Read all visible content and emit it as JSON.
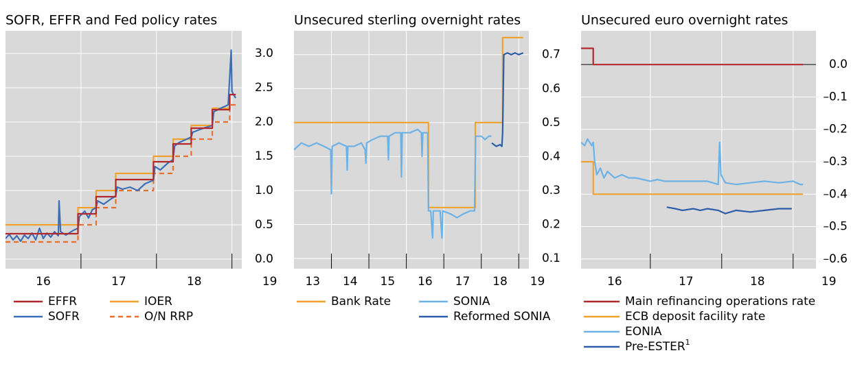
{
  "chart_data": [
    {
      "type": "line",
      "title": "SOFR, EFFR and Fed policy rates",
      "xlim": [
        2016.0,
        2019.13
      ],
      "xticks": [
        {
          "value": 2016.5,
          "label": "16"
        },
        {
          "value": 2017.5,
          "label": "17"
        },
        {
          "value": 2018.5,
          "label": "18"
        },
        {
          "value": 2019.5,
          "label": "19"
        }
      ],
      "xgrid": [
        2017,
        2018,
        2019
      ],
      "ylim": [
        -0.14,
        3.33
      ],
      "yticks": [
        {
          "value": 0,
          "label": "0.0"
        },
        0.5,
        {
          "value": 1,
          "label": "1.0"
        },
        1.5,
        {
          "value": 2,
          "label": "2.0"
        },
        2.5,
        {
          "value": 3,
          "label": "3.0"
        }
      ],
      "grid": true,
      "series": [
        {
          "name": "IOER",
          "color": "#f0a22e",
          "x": [
            2016.0,
            2016.96,
            2016.96,
            2017.2,
            2017.2,
            2017.46,
            2017.46,
            2017.96,
            2017.96,
            2018.22,
            2018.22,
            2018.46,
            2018.46,
            2018.74,
            2018.74,
            2018.97,
            2018.97,
            2019.05
          ],
          "values": [
            0.5,
            0.5,
            0.75,
            0.75,
            1.0,
            1.0,
            1.25,
            1.25,
            1.5,
            1.5,
            1.75,
            1.75,
            1.95,
            1.95,
            2.2,
            2.2,
            2.4,
            2.4
          ]
        },
        {
          "name": "O/N RRP",
          "color": "#e8702a",
          "dash": true,
          "x": [
            2016.0,
            2016.96,
            2016.96,
            2017.2,
            2017.2,
            2017.46,
            2017.46,
            2017.96,
            2017.96,
            2018.22,
            2018.22,
            2018.46,
            2018.46,
            2018.74,
            2018.74,
            2018.97,
            2018.97,
            2019.05
          ],
          "values": [
            0.25,
            0.25,
            0.5,
            0.5,
            0.75,
            0.75,
            1.0,
            1.0,
            1.25,
            1.25,
            1.5,
            1.5,
            1.75,
            1.75,
            2.0,
            2.0,
            2.25,
            2.25
          ]
        },
        {
          "name": "SOFR",
          "color": "#3a6fb7",
          "x": [
            2016.0,
            2016.05,
            2016.1,
            2016.15,
            2016.2,
            2016.25,
            2016.3,
            2016.35,
            2016.4,
            2016.45,
            2016.5,
            2016.55,
            2016.6,
            2016.65,
            2016.7,
            2016.71,
            2016.73,
            2016.8,
            2016.9,
            2016.96,
            2016.98,
            2017.05,
            2017.1,
            2017.15,
            2017.2,
            2017.22,
            2017.3,
            2017.4,
            2017.46,
            2017.48,
            2017.55,
            2017.65,
            2017.75,
            2017.85,
            2017.96,
            2017.98,
            2018.05,
            2018.15,
            2018.22,
            2018.24,
            2018.3,
            2018.4,
            2018.46,
            2018.48,
            2018.55,
            2018.65,
            2018.74,
            2018.76,
            2018.85,
            2018.95,
            2018.99,
            2019.0,
            2019.02,
            2019.05
          ],
          "values": [
            0.3,
            0.36,
            0.28,
            0.34,
            0.26,
            0.35,
            0.3,
            0.38,
            0.28,
            0.45,
            0.3,
            0.38,
            0.32,
            0.4,
            0.34,
            0.85,
            0.4,
            0.35,
            0.42,
            0.45,
            0.62,
            0.7,
            0.6,
            0.72,
            0.75,
            0.85,
            0.8,
            0.88,
            0.92,
            1.05,
            1.02,
            1.05,
            1.0,
            1.1,
            1.15,
            1.35,
            1.3,
            1.4,
            1.45,
            1.65,
            1.7,
            1.75,
            1.78,
            1.85,
            1.88,
            1.92,
            1.95,
            2.15,
            2.2,
            2.25,
            3.05,
            2.45,
            2.4,
            2.35
          ]
        },
        {
          "name": "EFFR",
          "color": "#b3282d",
          "x": [
            2016.0,
            2016.96,
            2016.96,
            2017.2,
            2017.2,
            2017.46,
            2017.46,
            2017.96,
            2017.96,
            2018.22,
            2018.22,
            2018.46,
            2018.46,
            2018.74,
            2018.74,
            2018.97,
            2018.97,
            2019.05
          ],
          "values": [
            0.37,
            0.37,
            0.66,
            0.66,
            0.91,
            0.91,
            1.16,
            1.16,
            1.42,
            1.42,
            1.68,
            1.68,
            1.91,
            1.91,
            2.18,
            2.18,
            2.4,
            2.4
          ]
        }
      ],
      "legend_order": [
        3,
        2,
        0,
        1
      ]
    },
    {
      "type": "line",
      "title": "Unsecured sterling overnight rates",
      "xlim": [
        2013.0,
        2019.27
      ],
      "xticks": [
        {
          "value": 2013.5,
          "label": "13"
        },
        {
          "value": 2014.5,
          "label": "14"
        },
        {
          "value": 2015.5,
          "label": "15"
        },
        {
          "value": 2016.5,
          "label": "16"
        },
        {
          "value": 2017.5,
          "label": "17"
        },
        {
          "value": 2018.5,
          "label": "18"
        },
        {
          "value": 2019.5,
          "label": "19"
        }
      ],
      "xgrid": [
        2014,
        2015,
        2016,
        2017,
        2018,
        2019
      ],
      "ylim": [
        0.07,
        0.77
      ],
      "yticks": [
        0.1,
        0.2,
        0.3,
        0.4,
        0.5,
        0.6,
        0.7
      ],
      "grid": true,
      "series": [
        {
          "name": "Bank Rate",
          "color": "#f0a22e",
          "x": [
            2013.0,
            2016.59,
            2016.59,
            2017.84,
            2017.84,
            2018.57,
            2018.57,
            2019.12
          ],
          "values": [
            0.5,
            0.5,
            0.25,
            0.25,
            0.5,
            0.5,
            0.75,
            0.75
          ]
        },
        {
          "name": "SONIA",
          "color": "#6cb2e6",
          "x": [
            2013.0,
            2013.2,
            2013.4,
            2013.6,
            2013.8,
            2013.98,
            2014.0,
            2014.02,
            2014.2,
            2014.4,
            2014.42,
            2014.44,
            2014.6,
            2014.8,
            2014.9,
            2014.92,
            2014.94,
            2015.1,
            2015.3,
            2015.5,
            2015.52,
            2015.54,
            2015.7,
            2015.85,
            2015.87,
            2015.89,
            2016.1,
            2016.3,
            2016.4,
            2016.42,
            2016.44,
            2016.57,
            2016.59,
            2016.65,
            2016.7,
            2016.72,
            2016.9,
            2016.95,
            2016.97,
            2017.2,
            2017.35,
            2017.5,
            2017.7,
            2017.82,
            2017.85,
            2018.0,
            2018.1,
            2018.2,
            2018.27
          ],
          "values": [
            0.42,
            0.44,
            0.43,
            0.44,
            0.43,
            0.42,
            0.29,
            0.43,
            0.44,
            0.43,
            0.36,
            0.43,
            0.43,
            0.44,
            0.42,
            0.38,
            0.44,
            0.45,
            0.46,
            0.46,
            0.39,
            0.46,
            0.47,
            0.47,
            0.34,
            0.47,
            0.47,
            0.48,
            0.47,
            0.4,
            0.47,
            0.47,
            0.24,
            0.24,
            0.16,
            0.24,
            0.24,
            0.16,
            0.24,
            0.23,
            0.22,
            0.23,
            0.24,
            0.24,
            0.46,
            0.46,
            0.45,
            0.46,
            0.46
          ]
        },
        {
          "name": "Reformed SONIA",
          "color": "#2b5da9",
          "x": [
            2018.28,
            2018.4,
            2018.5,
            2018.55,
            2018.57,
            2018.6,
            2018.7,
            2018.8,
            2018.9,
            2019.0,
            2019.12
          ],
          "values": [
            0.44,
            0.43,
            0.435,
            0.43,
            0.47,
            0.7,
            0.705,
            0.7,
            0.705,
            0.7,
            0.705
          ]
        }
      ],
      "legend_order": [
        0,
        1,
        2
      ]
    },
    {
      "type": "line",
      "title": "Unsecured euro overnight rates",
      "xlim": [
        2016.03,
        2019.32
      ],
      "xticks": [
        {
          "value": 2016.5,
          "label": "16"
        },
        {
          "value": 2017.5,
          "label": "17"
        },
        {
          "value": 2018.5,
          "label": "18"
        },
        {
          "value": 2019.5,
          "label": "19"
        }
      ],
      "xgrid": [
        2017,
        2018,
        2019
      ],
      "ylim": [
        -0.63,
        0.104
      ],
      "yticks": [
        {
          "value": -0.6,
          "label": "–0.6"
        },
        {
          "value": -0.5,
          "label": "–0.5"
        },
        {
          "value": -0.4,
          "label": "–0.4"
        },
        {
          "value": -0.3,
          "label": "–0.3"
        },
        {
          "value": -0.2,
          "label": "–0.2"
        },
        {
          "value": -0.1,
          "label": "–0.1"
        },
        {
          "value": 0,
          "label": "0.0"
        }
      ],
      "grid": true,
      "zero_line": true,
      "series": [
        {
          "name": "Main refinancing operations rate",
          "color": "#b3282d",
          "x": [
            2016.03,
            2016.2,
            2016.2,
            2019.14
          ],
          "values": [
            0.05,
            0.05,
            0,
            0
          ]
        },
        {
          "name": "ECB deposit facility rate",
          "color": "#f0a22e",
          "x": [
            2016.03,
            2016.2,
            2016.2,
            2019.14
          ],
          "values": [
            -0.3,
            -0.3,
            -0.4,
            -0.4
          ]
        },
        {
          "name": "EONIA",
          "color": "#6cb2e6",
          "x": [
            2016.03,
            2016.08,
            2016.12,
            2016.18,
            2016.2,
            2016.22,
            2016.25,
            2016.3,
            2016.35,
            2016.4,
            2016.5,
            2016.6,
            2016.7,
            2016.8,
            2016.9,
            2017.0,
            2017.1,
            2017.2,
            2017.4,
            2017.6,
            2017.8,
            2017.95,
            2017.97,
            2017.99,
            2018.05,
            2018.2,
            2018.4,
            2018.6,
            2018.8,
            2019.0,
            2019.1,
            2019.14
          ],
          "values": [
            -0.24,
            -0.25,
            -0.23,
            -0.25,
            -0.24,
            -0.3,
            -0.34,
            -0.32,
            -0.35,
            -0.33,
            -0.35,
            -0.34,
            -0.35,
            -0.35,
            -0.355,
            -0.36,
            -0.355,
            -0.36,
            -0.36,
            -0.36,
            -0.36,
            -0.37,
            -0.24,
            -0.34,
            -0.365,
            -0.37,
            -0.365,
            -0.36,
            -0.365,
            -0.36,
            -0.37,
            -0.37
          ]
        },
        {
          "name": "Pre-ESTER",
          "name_superscript": "1",
          "color": "#2b5da9",
          "x": [
            2017.23,
            2017.35,
            2017.45,
            2017.6,
            2017.7,
            2017.8,
            2017.95,
            2018.05,
            2018.2,
            2018.4,
            2018.6,
            2018.8,
            2018.98
          ],
          "values": [
            -0.44,
            -0.445,
            -0.45,
            -0.445,
            -0.45,
            -0.445,
            -0.45,
            -0.46,
            -0.45,
            -0.455,
            -0.45,
            -0.445,
            -0.445
          ]
        }
      ],
      "legend_order": [
        0,
        1,
        2,
        3
      ]
    }
  ]
}
